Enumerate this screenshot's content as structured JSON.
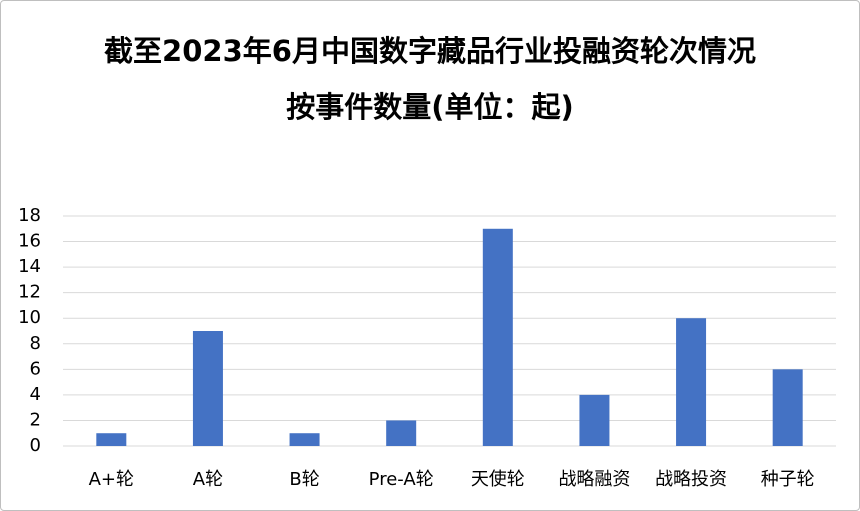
{
  "chart_data": {
    "type": "bar",
    "title": "截至2023年6月中国数字藏品行业投融资轮次情况",
    "subtitle": "按事件数量(单位：起)",
    "categories": [
      "A+轮",
      "A轮",
      "B轮",
      "Pre-A轮",
      "天使轮",
      "战略融资",
      "战略投资",
      "种子轮"
    ],
    "values": [
      1,
      9,
      1,
      2,
      17,
      4,
      10,
      6
    ],
    "color": "#4472c4",
    "ylim": [
      0,
      18
    ],
    "yticks": [
      0,
      2,
      4,
      6,
      8,
      10,
      12,
      14,
      16,
      18
    ],
    "grid": true
  }
}
